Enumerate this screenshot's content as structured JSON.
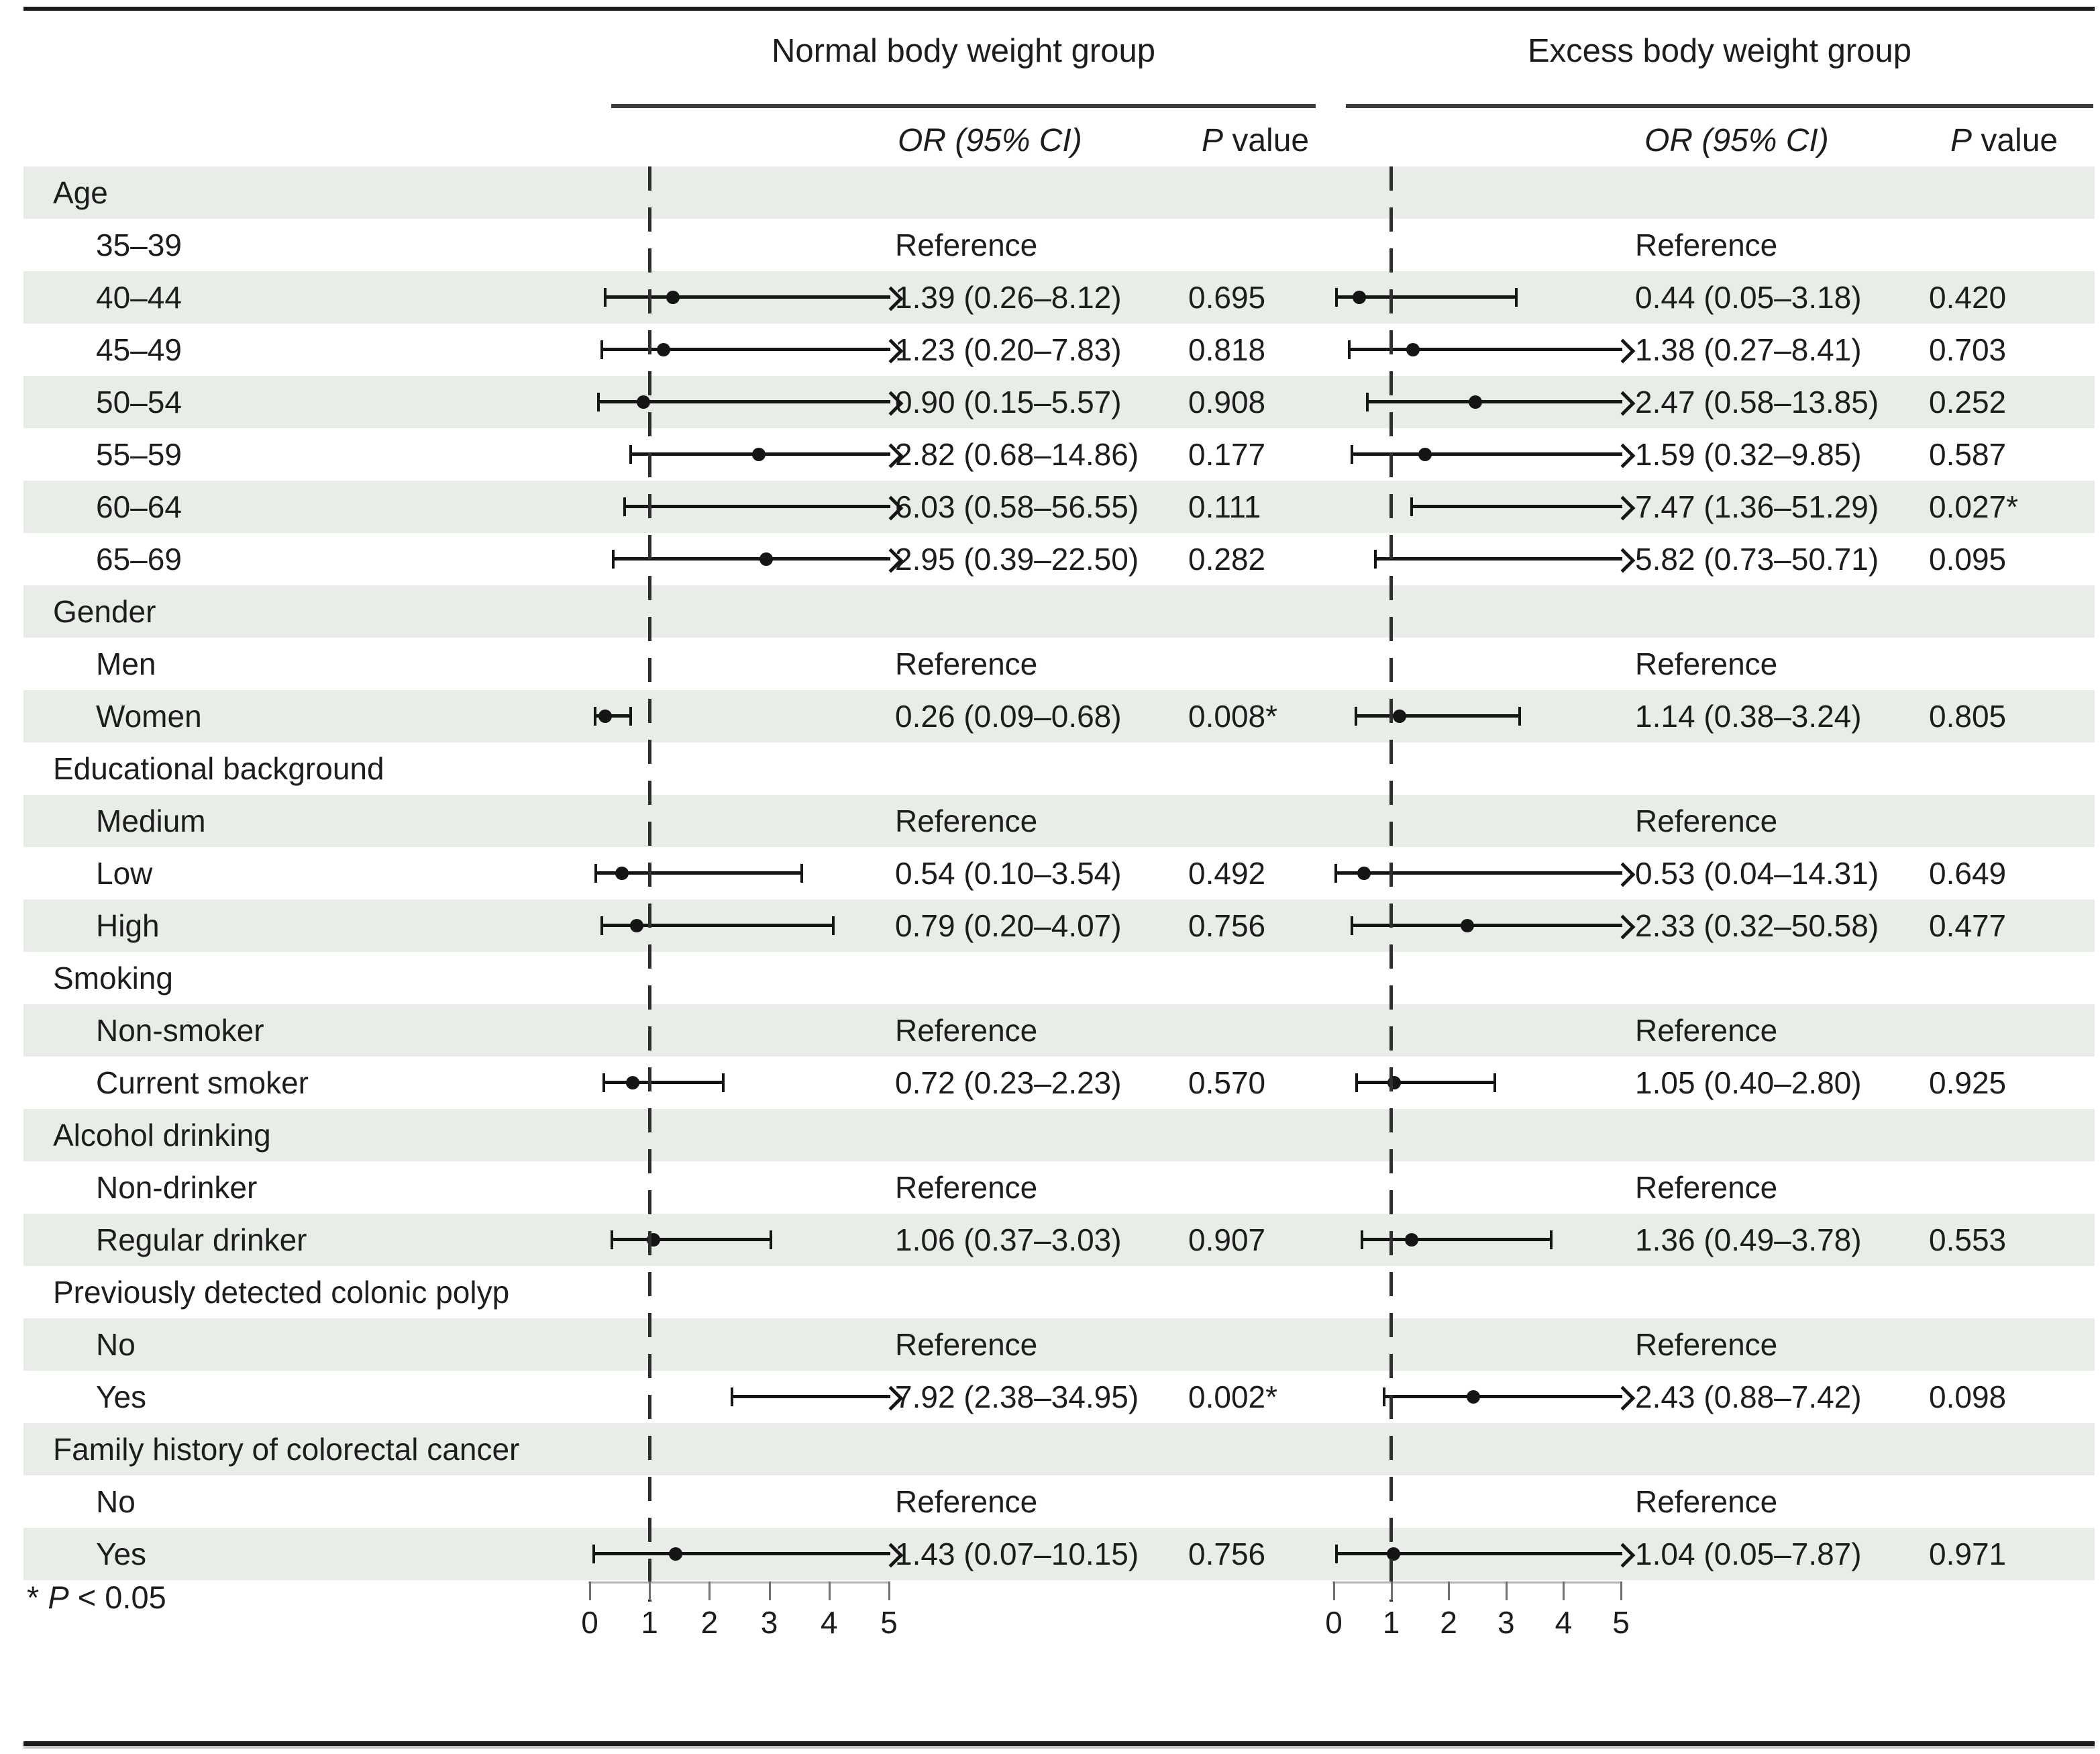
{
  "header": {
    "normal_title": "Normal body weight group",
    "excess_title": "Excess body weight group",
    "or_col": "OR (95% CI)",
    "p_col_italic": "P",
    "p_col_rest": " value",
    "footnote_star": "* ",
    "footnote_p": "P",
    "footnote_rest": " < 0.05"
  },
  "colors": {
    "stripe": "#e9ede8",
    "ink": "#1d1d1d",
    "plot_line": "#151515",
    "axis_line": "#b4b4b4",
    "tick": "#6f6f6f",
    "header_rule": "#3c3c3c",
    "frame_rule": "#1a1a1a"
  },
  "chart_data": {
    "type": "scatter",
    "variant": "forest-plot",
    "title": "",
    "xlabel": "",
    "xlim": [
      0,
      5
    ],
    "x_ticks": [
      "0",
      "1",
      "2",
      "3",
      "4",
      "5"
    ],
    "reference_line_x": 1,
    "grid": false,
    "reference_text": "Reference",
    "groups": [
      {
        "id": "normal",
        "title": "Normal body weight group"
      },
      {
        "id": "excess",
        "title": "Excess body weight group"
      }
    ],
    "categories": [
      {
        "label": "Age",
        "level": "group"
      },
      {
        "label": "35–39",
        "level": "item",
        "normal": {
          "text": "Reference"
        },
        "excess": {
          "text": "Reference"
        }
      },
      {
        "label": "40–44",
        "level": "item",
        "normal": {
          "or": 1.39,
          "ci": [
            0.26,
            8.12
          ],
          "or_text": "1.39 (0.26–8.12)",
          "p": "0.695"
        },
        "excess": {
          "or": 0.44,
          "ci": [
            0.05,
            3.18
          ],
          "or_text": "0.44 (0.05–3.18)",
          "p": "0.420"
        }
      },
      {
        "label": "45–49",
        "level": "item",
        "normal": {
          "or": 1.23,
          "ci": [
            0.2,
            7.83
          ],
          "or_text": "1.23 (0.20–7.83)",
          "p": "0.818"
        },
        "excess": {
          "or": 1.38,
          "ci": [
            0.27,
            8.41
          ],
          "or_text": "1.38 (0.27–8.41)",
          "p": "0.703"
        }
      },
      {
        "label": "50–54",
        "level": "item",
        "normal": {
          "or": 0.9,
          "ci": [
            0.15,
            5.57
          ],
          "or_text": "0.90 (0.15–5.57)",
          "p": "0.908"
        },
        "excess": {
          "or": 2.47,
          "ci": [
            0.58,
            13.85
          ],
          "or_text": "2.47 (0.58–13.85)",
          "p": "0.252"
        }
      },
      {
        "label": "55–59",
        "level": "item",
        "normal": {
          "or": 2.82,
          "ci": [
            0.68,
            14.86
          ],
          "or_text": "2.82 (0.68–14.86)",
          "p": "0.177"
        },
        "excess": {
          "or": 1.59,
          "ci": [
            0.32,
            9.85
          ],
          "or_text": "1.59 (0.32–9.85)",
          "p": "0.587"
        }
      },
      {
        "label": "60–64",
        "level": "item",
        "normal": {
          "or": 6.03,
          "ci": [
            0.58,
            56.55
          ],
          "or_text": "6.03 (0.58–56.55)",
          "p": "0.111"
        },
        "excess": {
          "or": 7.47,
          "ci": [
            1.36,
            51.29
          ],
          "or_text": "7.47 (1.36–51.29)",
          "p": "0.027*"
        }
      },
      {
        "label": "65–69",
        "level": "item",
        "normal": {
          "or": 2.95,
          "ci": [
            0.39,
            22.5
          ],
          "or_text": "2.95 (0.39–22.50)",
          "p": "0.282"
        },
        "excess": {
          "or": 5.82,
          "ci": [
            0.73,
            50.71
          ],
          "or_text": "5.82 (0.73–50.71)",
          "p": "0.095"
        }
      },
      {
        "label": "Gender",
        "level": "group"
      },
      {
        "label": "Men",
        "level": "item",
        "normal": {
          "text": "Reference"
        },
        "excess": {
          "text": "Reference"
        }
      },
      {
        "label": "Women",
        "level": "item",
        "normal": {
          "or": 0.26,
          "ci": [
            0.09,
            0.68
          ],
          "or_text": "0.26 (0.09–0.68)",
          "p": "0.008*"
        },
        "excess": {
          "or": 1.14,
          "ci": [
            0.38,
            3.24
          ],
          "or_text": "1.14 (0.38–3.24)",
          "p": "0.805"
        }
      },
      {
        "label": "Educational background",
        "level": "group"
      },
      {
        "label": "Medium",
        "level": "item",
        "normal": {
          "text": "Reference"
        },
        "excess": {
          "text": "Reference"
        }
      },
      {
        "label": "Low",
        "level": "item",
        "normal": {
          "or": 0.54,
          "ci": [
            0.1,
            3.54
          ],
          "or_text": "0.54 (0.10–3.54)",
          "p": "0.492"
        },
        "excess": {
          "or": 0.53,
          "ci": [
            0.04,
            14.31
          ],
          "or_text": "0.53 (0.04–14.31)",
          "p": "0.649"
        }
      },
      {
        "label": "High",
        "level": "item",
        "normal": {
          "or": 0.79,
          "ci": [
            0.2,
            4.07
          ],
          "or_text": "0.79 (0.20–4.07)",
          "p": "0.756"
        },
        "excess": {
          "or": 2.33,
          "ci": [
            0.32,
            50.58
          ],
          "or_text": "2.33 (0.32–50.58)",
          "p": "0.477"
        }
      },
      {
        "label": "Smoking",
        "level": "group"
      },
      {
        "label": "Non-smoker",
        "level": "item",
        "normal": {
          "text": "Reference"
        },
        "excess": {
          "text": "Reference"
        }
      },
      {
        "label": "Current smoker",
        "level": "item",
        "normal": {
          "or": 0.72,
          "ci": [
            0.23,
            2.23
          ],
          "or_text": "0.72 (0.23–2.23)",
          "p": "0.570"
        },
        "excess": {
          "or": 1.05,
          "ci": [
            0.4,
            2.8
          ],
          "or_text": "1.05 (0.40–2.80)",
          "p": "0.925"
        }
      },
      {
        "label": "Alcohol drinking",
        "level": "group"
      },
      {
        "label": "Non-drinker",
        "level": "item",
        "normal": {
          "text": "Reference"
        },
        "excess": {
          "text": "Reference"
        }
      },
      {
        "label": "Regular drinker",
        "level": "item",
        "normal": {
          "or": 1.06,
          "ci": [
            0.37,
            3.03
          ],
          "or_text": "1.06 (0.37–3.03)",
          "p": "0.907"
        },
        "excess": {
          "or": 1.36,
          "ci": [
            0.49,
            3.78
          ],
          "or_text": "1.36 (0.49–3.78)",
          "p": "0.553"
        }
      },
      {
        "label": "Previously detected colonic polyp",
        "level": "group"
      },
      {
        "label": "No",
        "level": "item",
        "normal": {
          "text": "Reference"
        },
        "excess": {
          "text": "Reference"
        }
      },
      {
        "label": "Yes",
        "level": "item",
        "normal": {
          "or": 7.92,
          "ci": [
            2.38,
            34.95
          ],
          "or_text": "7.92 (2.38–34.95)",
          "p": "0.002*"
        },
        "excess": {
          "or": 2.43,
          "ci": [
            0.88,
            7.42
          ],
          "or_text": "2.43 (0.88–7.42)",
          "p": "0.098"
        }
      },
      {
        "label": "Family history of colorectal cancer",
        "level": "group"
      },
      {
        "label": "No",
        "level": "item",
        "normal": {
          "text": "Reference"
        },
        "excess": {
          "text": "Reference"
        }
      },
      {
        "label": "Yes",
        "level": "item",
        "normal": {
          "or": 1.43,
          "ci": [
            0.07,
            10.15
          ],
          "or_text": "1.43 (0.07–10.15)",
          "p": "0.756"
        },
        "excess": {
          "or": 1.04,
          "ci": [
            0.05,
            7.87
          ],
          "or_text": "1.04 (0.05–7.87)",
          "p": "0.971"
        }
      }
    ]
  }
}
